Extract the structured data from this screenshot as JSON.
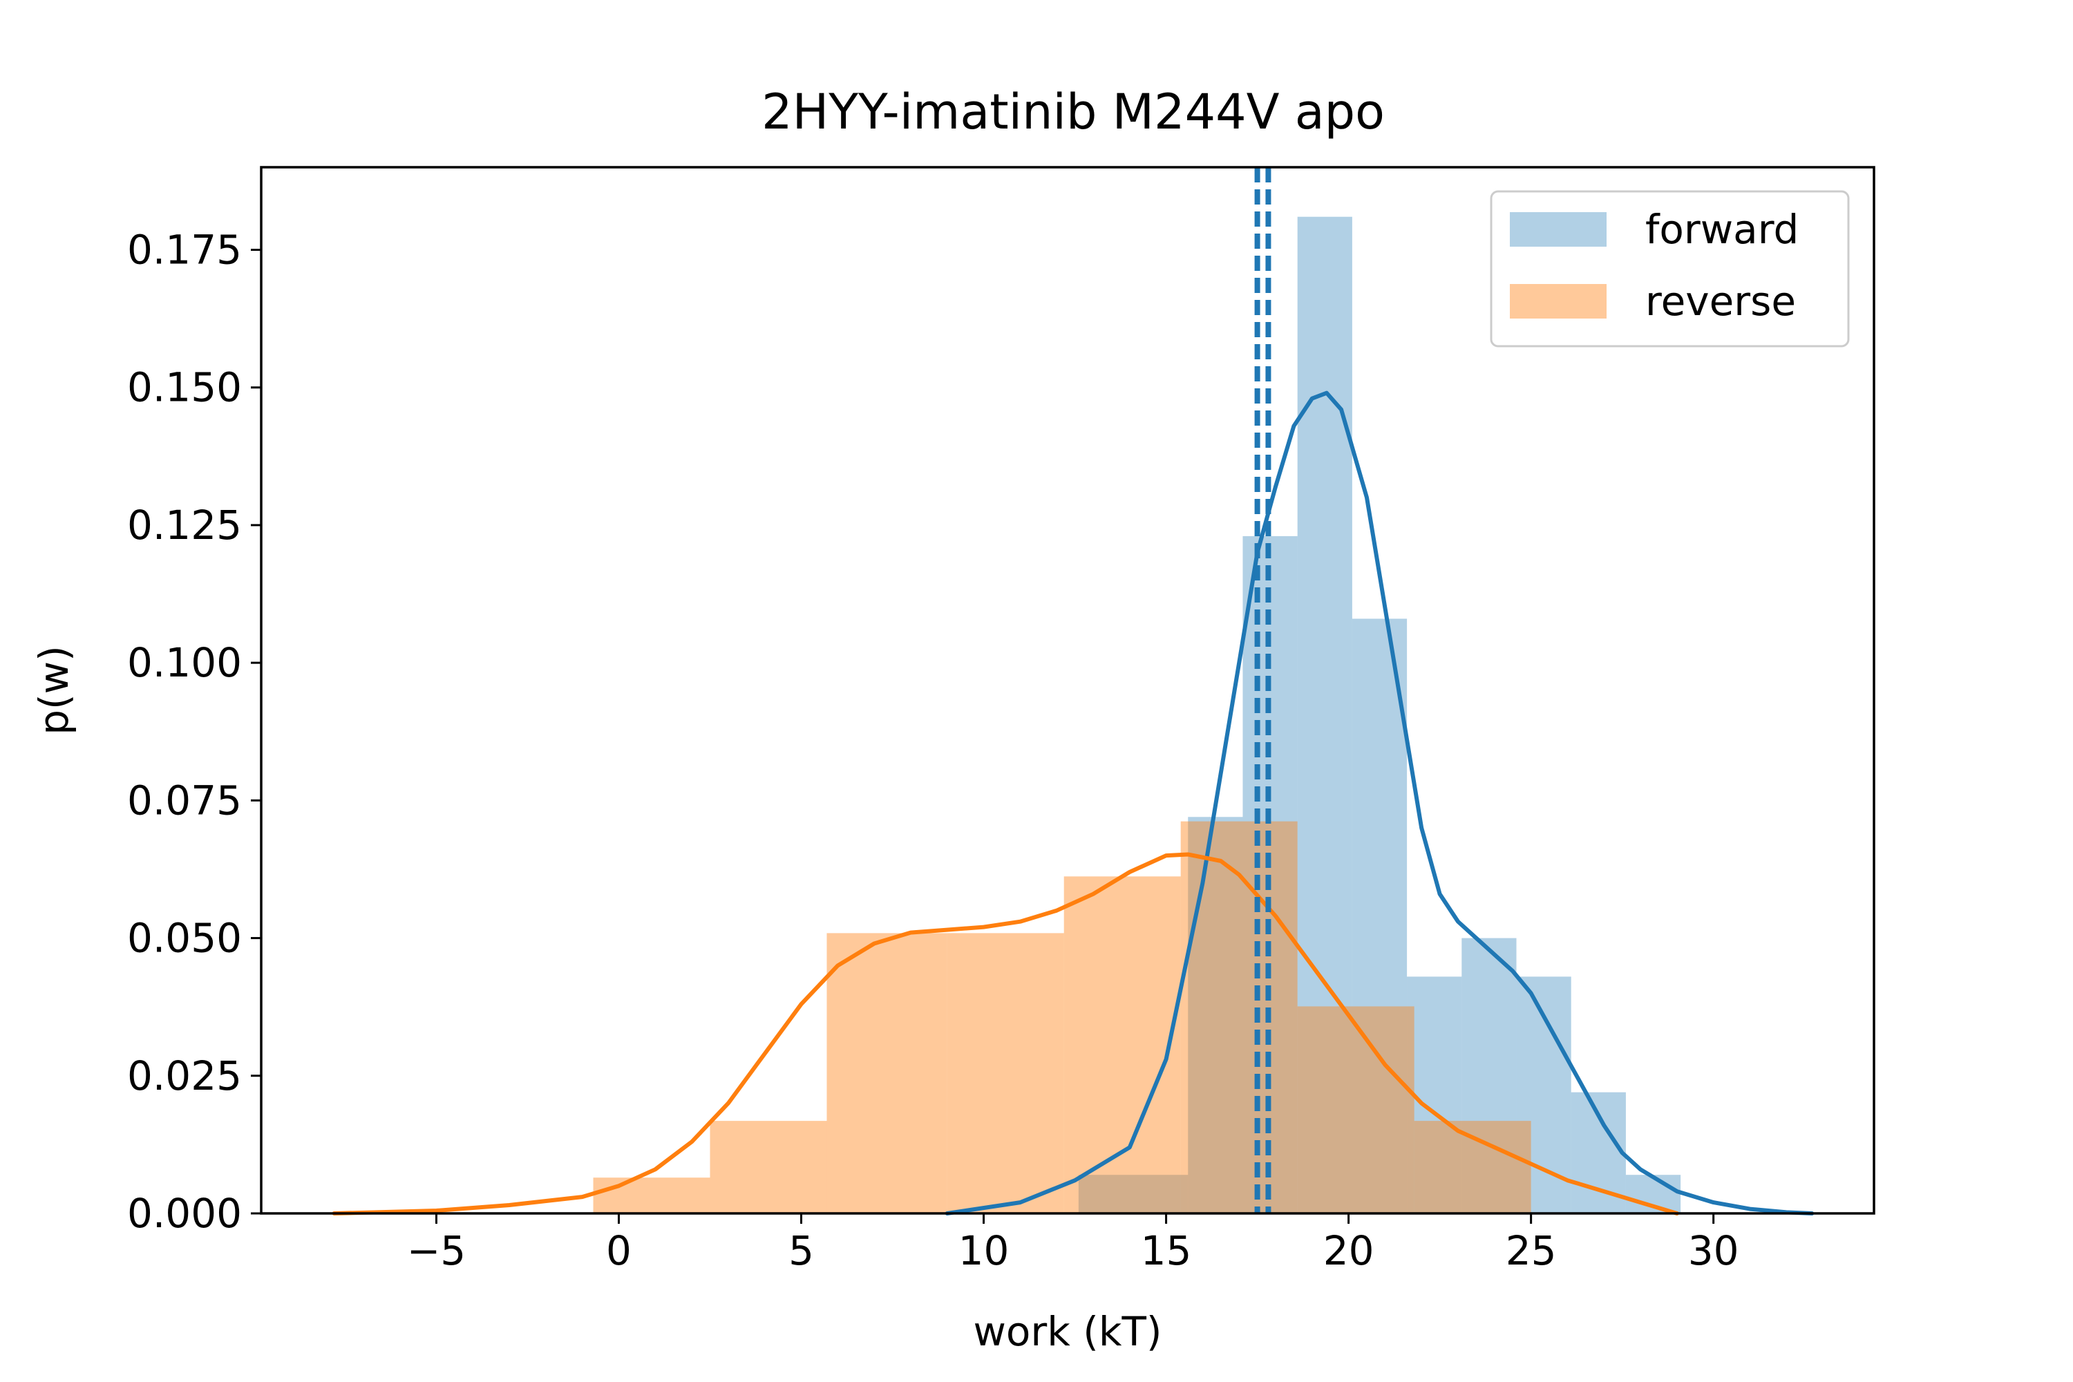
{
  "chart_data": {
    "type": "histogram",
    "title": "2HYY-imatinib M244V apo",
    "xlabel": "work (kT)",
    "ylabel": "p(w)",
    "xlim": [
      -9.8,
      34.4
    ],
    "ylim": [
      0,
      0.19
    ],
    "x_ticks": [
      -5,
      0,
      5,
      10,
      15,
      20,
      25,
      30
    ],
    "x_tick_labels": [
      "−5",
      "0",
      "5",
      "10",
      "15",
      "20",
      "25",
      "30"
    ],
    "y_ticks": [
      0.0,
      0.025,
      0.05,
      0.075,
      0.1,
      0.125,
      0.15,
      0.175
    ],
    "y_tick_labels": [
      "0.000",
      "0.025",
      "0.050",
      "0.075",
      "0.100",
      "0.125",
      "0.150",
      "0.175"
    ],
    "grid": false,
    "legend_position": "top-right",
    "series": [
      {
        "name": "forward",
        "color": "#1f77b4",
        "histogram": {
          "edges": [
            12.6,
            15.6,
            17.1,
            18.6,
            20.1,
            21.6,
            23.1,
            24.6,
            26.1,
            27.6,
            29.1
          ],
          "values": [
            0.007,
            0.072,
            0.123,
            0.181,
            0.108,
            0.043,
            0.05,
            0.043,
            0.022,
            0.007
          ]
        },
        "kde": {
          "x": [
            9.0,
            11.0,
            12.5,
            14.0,
            15.0,
            16.0,
            17.0,
            17.5,
            18.0,
            18.5,
            19.0,
            19.4,
            19.8,
            20.5,
            21.0,
            21.5,
            22.0,
            22.5,
            23.0,
            23.5,
            24.0,
            24.5,
            25.0,
            25.5,
            26.0,
            26.5,
            27.0,
            27.5,
            28.0,
            28.5,
            29.0,
            30.0,
            31.0,
            32.0,
            32.7
          ],
          "y": [
            0.0,
            0.002,
            0.006,
            0.012,
            0.028,
            0.06,
            0.1,
            0.12,
            0.132,
            0.143,
            0.148,
            0.149,
            0.146,
            0.13,
            0.11,
            0.09,
            0.07,
            0.058,
            0.053,
            0.05,
            0.047,
            0.044,
            0.04,
            0.034,
            0.028,
            0.022,
            0.016,
            0.011,
            0.008,
            0.006,
            0.004,
            0.002,
            0.0008,
            0.0002,
            0.0
          ]
        },
        "vlines": [
          17.5,
          17.8
        ]
      },
      {
        "name": "reverse",
        "color": "#ff7f0e",
        "histogram": {
          "edges": [
            -0.7,
            2.5,
            5.7,
            9.0,
            12.2,
            15.4,
            18.6,
            21.8,
            25.0
          ],
          "values": [
            0.0065,
            0.0168,
            0.0509,
            0.0509,
            0.0612,
            0.0712,
            0.0376,
            0.0168
          ]
        },
        "kde": {
          "x": [
            -7.8,
            -5.0,
            -3.0,
            -1.0,
            0.0,
            1.0,
            2.0,
            3.0,
            4.0,
            5.0,
            6.0,
            7.0,
            8.0,
            9.0,
            10.0,
            11.0,
            12.0,
            13.0,
            14.0,
            15.0,
            15.6,
            16.5,
            17.0,
            18.0,
            19.0,
            20.0,
            21.0,
            22.0,
            23.0,
            24.0,
            25.0,
            26.0,
            27.0,
            28.0,
            29.0
          ],
          "y": [
            0.0,
            0.0005,
            0.0015,
            0.003,
            0.005,
            0.008,
            0.013,
            0.02,
            0.029,
            0.038,
            0.045,
            0.049,
            0.051,
            0.0515,
            0.052,
            0.053,
            0.055,
            0.058,
            0.062,
            0.065,
            0.0652,
            0.064,
            0.0615,
            0.054,
            0.045,
            0.036,
            0.027,
            0.02,
            0.015,
            0.012,
            0.009,
            0.006,
            0.004,
            0.002,
            0.0
          ]
        },
        "vlines": []
      }
    ]
  }
}
